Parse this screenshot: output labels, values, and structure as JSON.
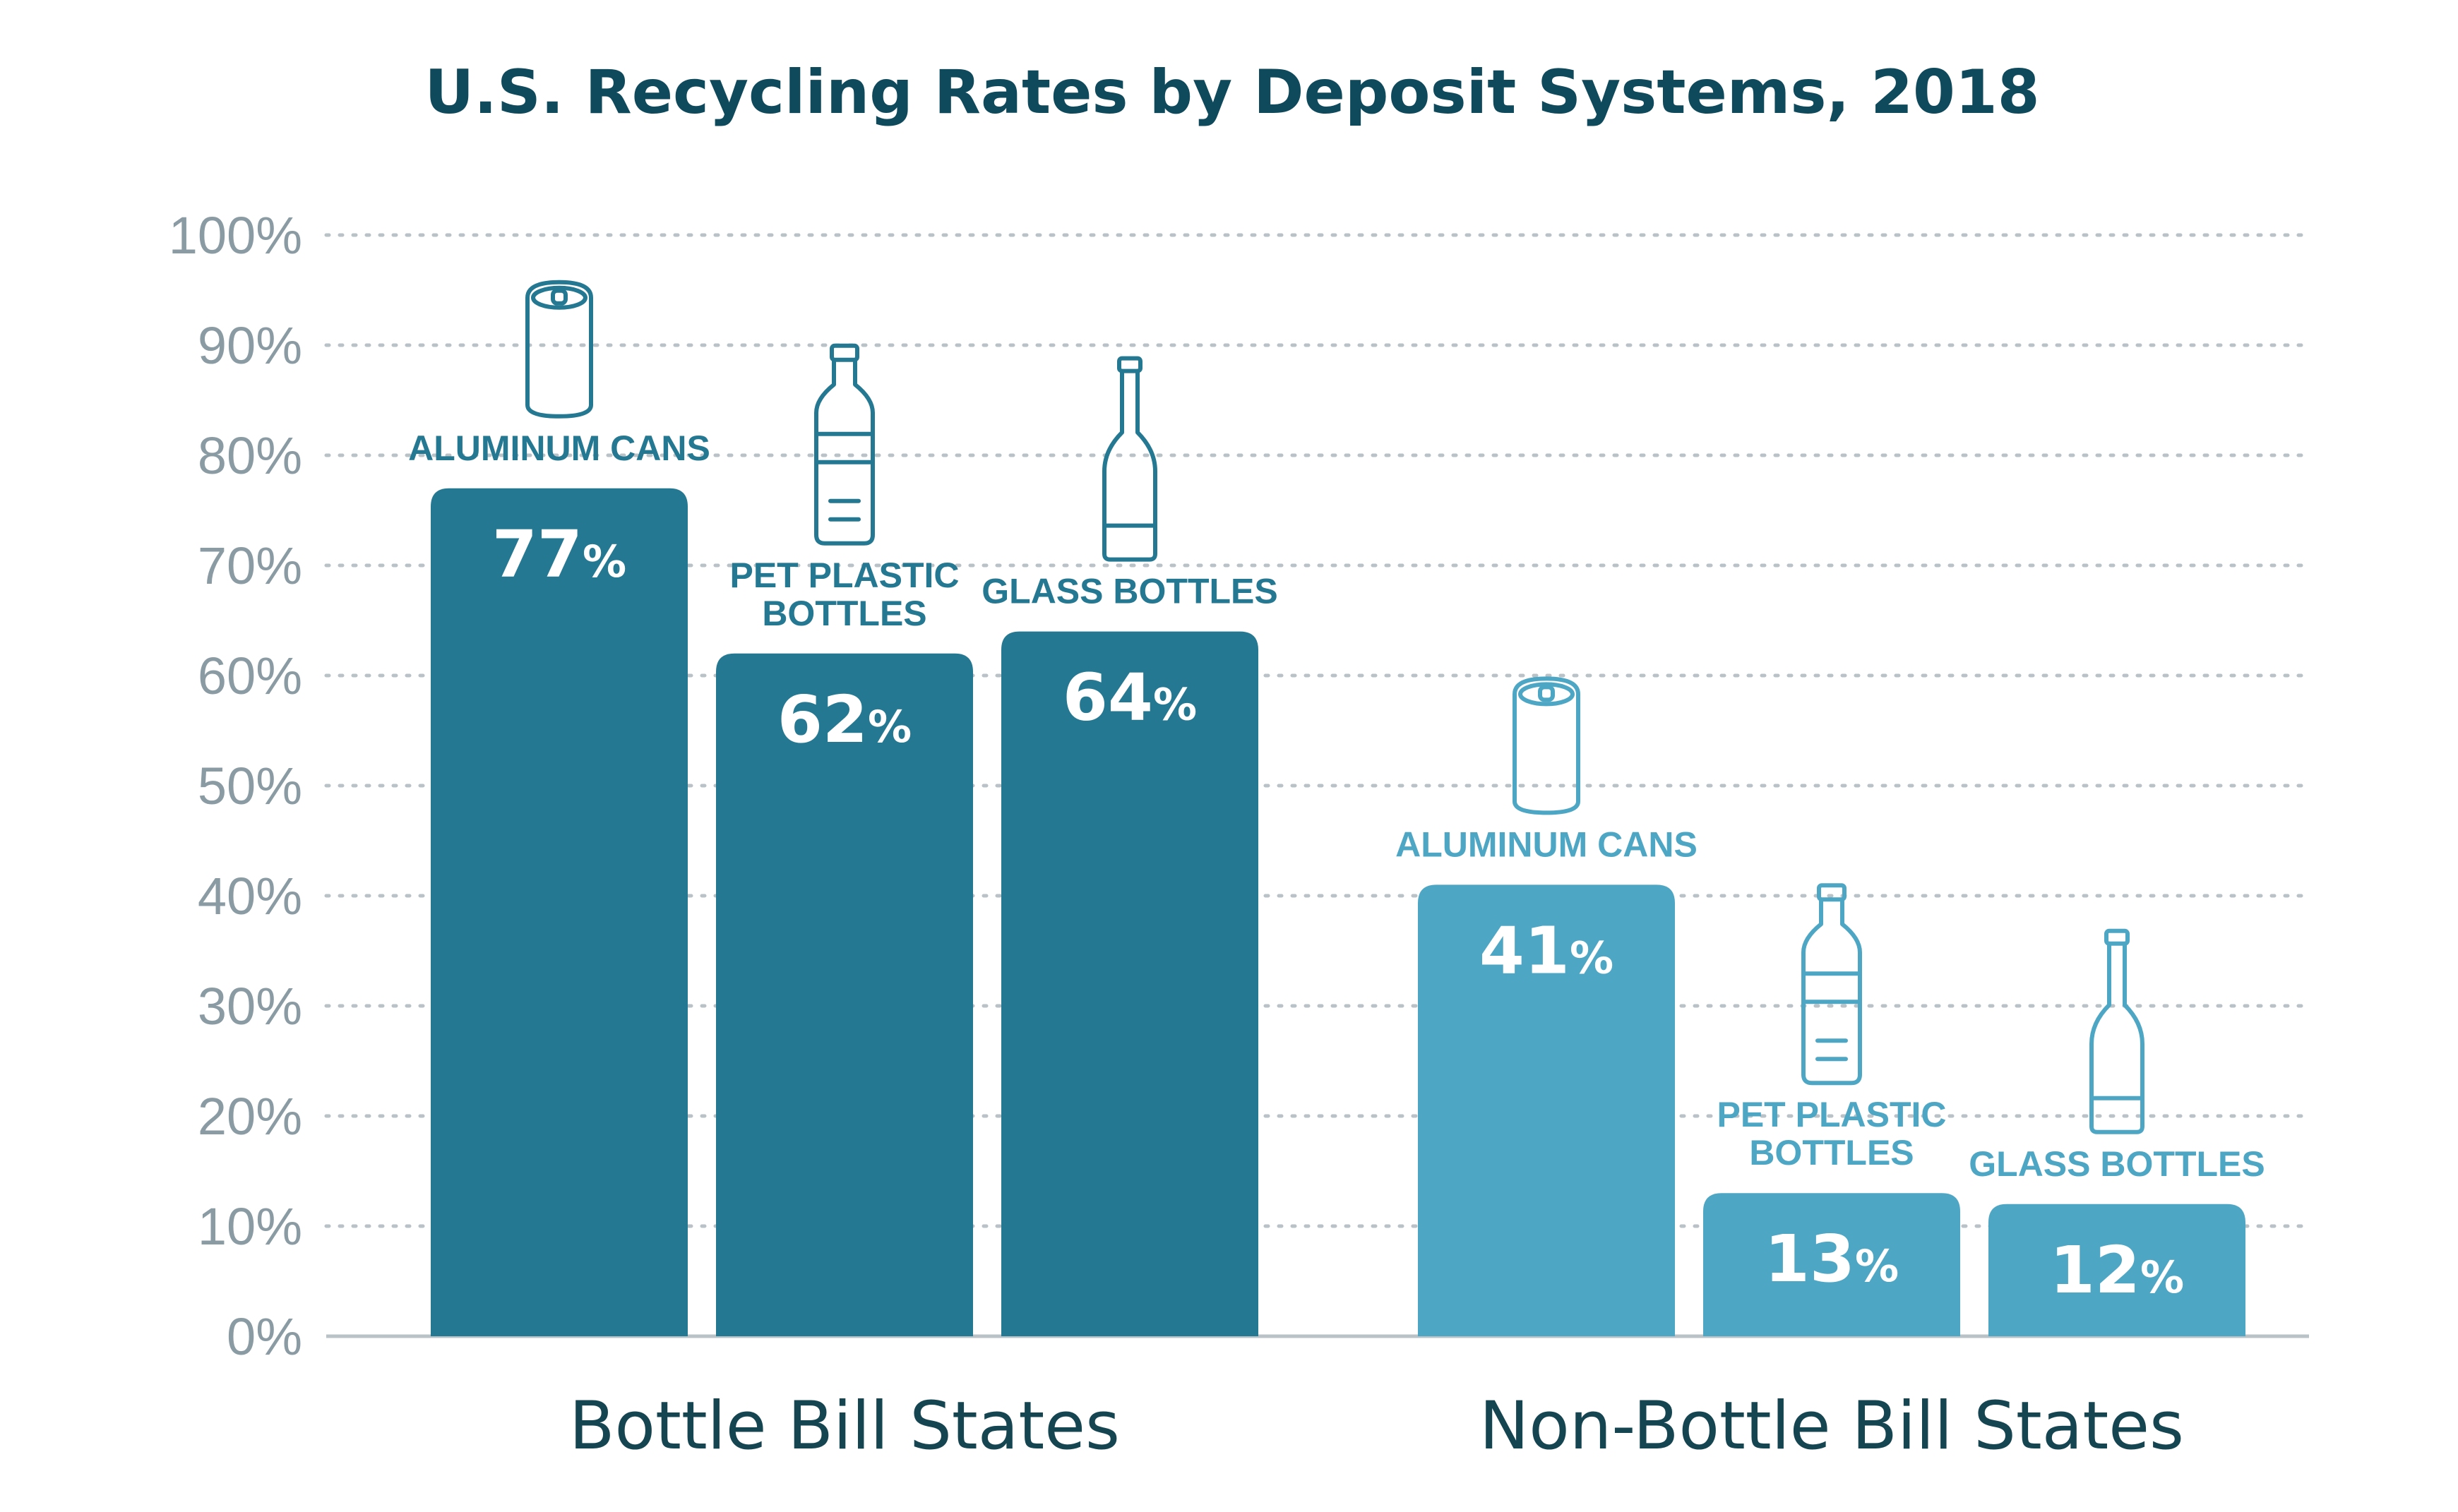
{
  "chart_data": {
    "type": "bar",
    "title": "U.S. Recycling Rates by Deposit Systems, 2018",
    "ylim": [
      0,
      100
    ],
    "yticks": [
      0,
      10,
      20,
      30,
      40,
      50,
      60,
      70,
      80,
      90,
      100
    ],
    "tick_suffix": "%",
    "grid": true,
    "groups": [
      {
        "name": "Bottle Bill States",
        "color": "#257891",
        "label_color": "#257891",
        "bars": [
          {
            "category": "ALUMINUM CANS",
            "value": 77,
            "icon": "can-icon"
          },
          {
            "category": "PET PLASTIC BOTTLES",
            "value": 62,
            "icon": "plastic-bottle-icon"
          },
          {
            "category": "GLASS BOTTLES",
            "value": 64,
            "icon": "glass-bottle-icon"
          }
        ]
      },
      {
        "name": "Non-Bottle Bill States",
        "color": "#4ea6c5",
        "label_color": "#4ea6c5",
        "bars": [
          {
            "category": "ALUMINUM CANS",
            "value": 41,
            "icon": "can-icon"
          },
          {
            "category": "PET PLASTIC BOTTLES",
            "value": 13,
            "icon": "plastic-bottle-icon"
          },
          {
            "category": "GLASS BOTTLES",
            "value": 12,
            "icon": "glass-bottle-icon"
          }
        ]
      }
    ]
  }
}
